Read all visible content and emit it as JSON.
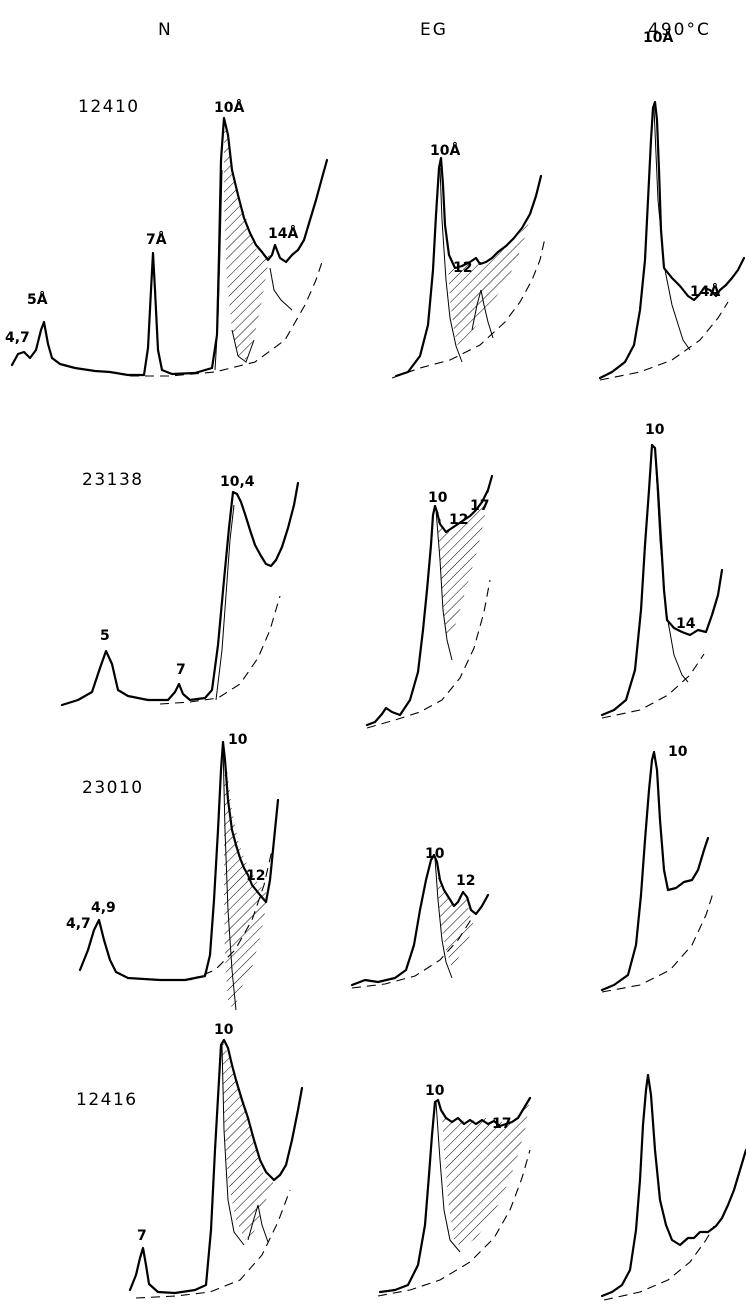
{
  "columns": [
    {
      "key": "n",
      "label": "N"
    },
    {
      "key": "eg",
      "label": "EG"
    },
    {
      "key": "heated",
      "label": "490°C"
    }
  ],
  "samples": [
    {
      "id": "12410",
      "panels": [
        {
          "labels": [
            "4,7",
            "5Å",
            "7Å",
            "10Å",
            "14Å"
          ]
        },
        {
          "labels": [
            "10Å",
            "12"
          ]
        },
        {
          "labels": [
            "10Å",
            "14Å"
          ]
        }
      ]
    },
    {
      "id": "23138",
      "panels": [
        {
          "labels": [
            "5",
            "7",
            "10,4"
          ]
        },
        {
          "labels": [
            "10",
            "12",
            "17"
          ]
        },
        {
          "labels": [
            "10",
            "14"
          ]
        }
      ]
    },
    {
      "id": "23010",
      "panels": [
        {
          "labels": [
            "4,7",
            "4,9",
            "10",
            "12"
          ]
        },
        {
          "labels": [
            "10",
            "12"
          ]
        },
        {
          "labels": [
            "10"
          ]
        }
      ]
    },
    {
      "id": "12416",
      "panels": [
        {
          "labels": [
            "7",
            "10"
          ]
        },
        {
          "labels": [
            "10",
            "17"
          ]
        },
        {
          "labels": []
        }
      ]
    }
  ]
}
